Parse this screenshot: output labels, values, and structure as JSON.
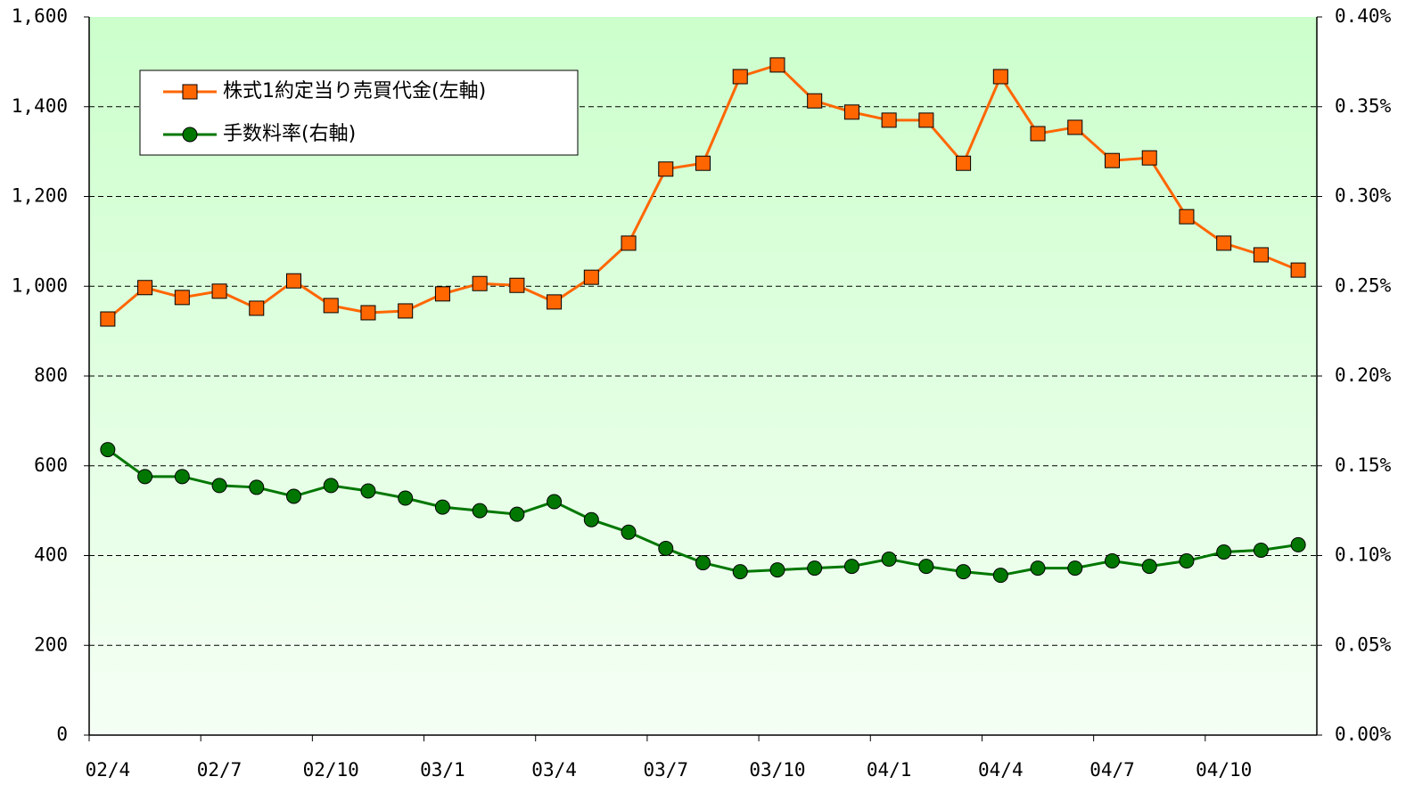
{
  "chart_data": {
    "type": "line",
    "categories": [
      "02/4",
      null,
      null,
      "02/7",
      null,
      null,
      "02/10",
      null,
      null,
      "03/1",
      null,
      null,
      "03/4",
      null,
      null,
      "03/7",
      null,
      null,
      "03/10",
      null,
      null,
      "04/1",
      null,
      null,
      "04/4",
      null,
      null,
      "04/7",
      null,
      null,
      "04/10",
      null,
      null
    ],
    "series": [
      {
        "name": "株式1約定当り売買代金(左軸)",
        "color": "#ff6600",
        "marker": "square",
        "values": [
          927,
          997,
          975,
          989,
          951,
          1012,
          957,
          941,
          945,
          983,
          1006,
          1002,
          965,
          1020,
          1096,
          1261,
          1274,
          1467,
          1493,
          1413,
          1388,
          1370,
          1370,
          1274,
          1467,
          1340,
          1354,
          1280,
          1286,
          1155,
          1096,
          1070,
          1036
        ]
      },
      {
        "name": "手数料率(右軸)",
        "color": "#007700",
        "marker": "circle",
        "axis": "y2",
        "values": [
          0.159,
          0.144,
          0.144,
          0.139,
          0.138,
          0.133,
          0.139,
          0.136,
          0.132,
          0.127,
          0.125,
          0.123,
          0.13,
          0.12,
          0.113,
          0.104,
          0.096,
          0.091,
          0.092,
          0.093,
          0.094,
          0.098,
          0.094,
          0.091,
          0.089,
          0.093,
          0.093,
          0.097,
          0.094,
          0.097,
          0.102,
          0.103,
          0.106
        ]
      }
    ],
    "ylim": [
      0,
      1600
    ],
    "yticks": [
      0,
      200,
      400,
      600,
      800,
      {
        "value": 1000,
        "label": "1,000"
      },
      {
        "value": 1200,
        "label": "1,200"
      },
      {
        "value": 1400,
        "label": "1,400"
      },
      {
        "value": 1600,
        "label": "1,600"
      }
    ],
    "y2lim": [
      0,
      0.4
    ],
    "y2ticks": [
      {
        "value": 0,
        "label": "0.00%"
      },
      {
        "value": 0.05,
        "label": "0.05%"
      },
      {
        "value": 0.1,
        "label": "0.10%"
      },
      {
        "value": 0.15,
        "label": "0.15%"
      },
      {
        "value": 0.2,
        "label": "0.20%"
      },
      {
        "value": 0.25,
        "label": "0.25%"
      },
      {
        "value": 0.3,
        "label": "0.30%"
      },
      {
        "value": 0.35,
        "label": "0.35%"
      },
      {
        "value": 0.4,
        "label": "0.40%"
      }
    ],
    "grid": true,
    "legend": "upper left"
  }
}
